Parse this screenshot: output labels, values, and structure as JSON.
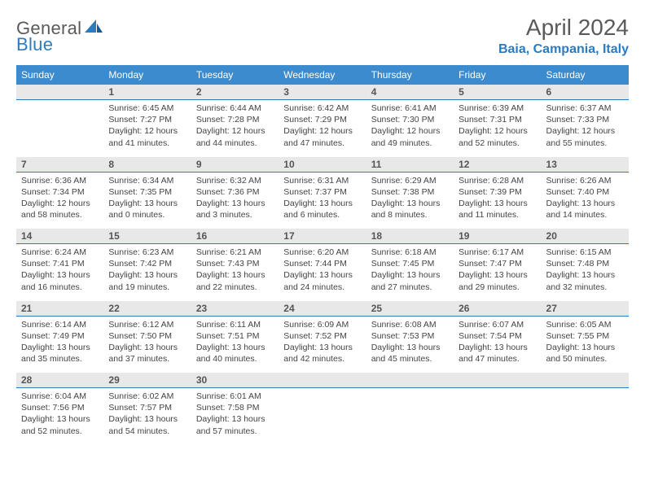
{
  "brand": {
    "part1": "General",
    "part2": "Blue"
  },
  "title": "April 2024",
  "location": "Baia, Campania, Italy",
  "colors": {
    "header_bg": "#3b8bce",
    "header_text": "#ffffff",
    "daynum_bg": "#e8e8e8",
    "daynum_text": "#555555",
    "divider": "#2b7bbf",
    "body_text": "#444444",
    "title_text": "#5a5a5a",
    "location_text": "#2b7bbf",
    "page_bg": "#ffffff"
  },
  "fonts": {
    "title_size_pt": 21,
    "location_size_pt": 12,
    "dayname_size_pt": 9,
    "daynum_size_pt": 9,
    "body_size_pt": 8
  },
  "day_names": [
    "Sunday",
    "Monday",
    "Tuesday",
    "Wednesday",
    "Thursday",
    "Friday",
    "Saturday"
  ],
  "weeks": [
    [
      null,
      {
        "n": "1",
        "sr": "6:45 AM",
        "ss": "7:27 PM",
        "dl": "12 hours and 41 minutes."
      },
      {
        "n": "2",
        "sr": "6:44 AM",
        "ss": "7:28 PM",
        "dl": "12 hours and 44 minutes."
      },
      {
        "n": "3",
        "sr": "6:42 AM",
        "ss": "7:29 PM",
        "dl": "12 hours and 47 minutes."
      },
      {
        "n": "4",
        "sr": "6:41 AM",
        "ss": "7:30 PM",
        "dl": "12 hours and 49 minutes."
      },
      {
        "n": "5",
        "sr": "6:39 AM",
        "ss": "7:31 PM",
        "dl": "12 hours and 52 minutes."
      },
      {
        "n": "6",
        "sr": "6:37 AM",
        "ss": "7:33 PM",
        "dl": "12 hours and 55 minutes."
      }
    ],
    [
      {
        "n": "7",
        "sr": "6:36 AM",
        "ss": "7:34 PM",
        "dl": "12 hours and 58 minutes."
      },
      {
        "n": "8",
        "sr": "6:34 AM",
        "ss": "7:35 PM",
        "dl": "13 hours and 0 minutes."
      },
      {
        "n": "9",
        "sr": "6:32 AM",
        "ss": "7:36 PM",
        "dl": "13 hours and 3 minutes."
      },
      {
        "n": "10",
        "sr": "6:31 AM",
        "ss": "7:37 PM",
        "dl": "13 hours and 6 minutes."
      },
      {
        "n": "11",
        "sr": "6:29 AM",
        "ss": "7:38 PM",
        "dl": "13 hours and 8 minutes."
      },
      {
        "n": "12",
        "sr": "6:28 AM",
        "ss": "7:39 PM",
        "dl": "13 hours and 11 minutes."
      },
      {
        "n": "13",
        "sr": "6:26 AM",
        "ss": "7:40 PM",
        "dl": "13 hours and 14 minutes."
      }
    ],
    [
      {
        "n": "14",
        "sr": "6:24 AM",
        "ss": "7:41 PM",
        "dl": "13 hours and 16 minutes."
      },
      {
        "n": "15",
        "sr": "6:23 AM",
        "ss": "7:42 PM",
        "dl": "13 hours and 19 minutes."
      },
      {
        "n": "16",
        "sr": "6:21 AM",
        "ss": "7:43 PM",
        "dl": "13 hours and 22 minutes."
      },
      {
        "n": "17",
        "sr": "6:20 AM",
        "ss": "7:44 PM",
        "dl": "13 hours and 24 minutes."
      },
      {
        "n": "18",
        "sr": "6:18 AM",
        "ss": "7:45 PM",
        "dl": "13 hours and 27 minutes."
      },
      {
        "n": "19",
        "sr": "6:17 AM",
        "ss": "7:47 PM",
        "dl": "13 hours and 29 minutes."
      },
      {
        "n": "20",
        "sr": "6:15 AM",
        "ss": "7:48 PM",
        "dl": "13 hours and 32 minutes."
      }
    ],
    [
      {
        "n": "21",
        "sr": "6:14 AM",
        "ss": "7:49 PM",
        "dl": "13 hours and 35 minutes."
      },
      {
        "n": "22",
        "sr": "6:12 AM",
        "ss": "7:50 PM",
        "dl": "13 hours and 37 minutes."
      },
      {
        "n": "23",
        "sr": "6:11 AM",
        "ss": "7:51 PM",
        "dl": "13 hours and 40 minutes."
      },
      {
        "n": "24",
        "sr": "6:09 AM",
        "ss": "7:52 PM",
        "dl": "13 hours and 42 minutes."
      },
      {
        "n": "25",
        "sr": "6:08 AM",
        "ss": "7:53 PM",
        "dl": "13 hours and 45 minutes."
      },
      {
        "n": "26",
        "sr": "6:07 AM",
        "ss": "7:54 PM",
        "dl": "13 hours and 47 minutes."
      },
      {
        "n": "27",
        "sr": "6:05 AM",
        "ss": "7:55 PM",
        "dl": "13 hours and 50 minutes."
      }
    ],
    [
      {
        "n": "28",
        "sr": "6:04 AM",
        "ss": "7:56 PM",
        "dl": "13 hours and 52 minutes."
      },
      {
        "n": "29",
        "sr": "6:02 AM",
        "ss": "7:57 PM",
        "dl": "13 hours and 54 minutes."
      },
      {
        "n": "30",
        "sr": "6:01 AM",
        "ss": "7:58 PM",
        "dl": "13 hours and 57 minutes."
      },
      null,
      null,
      null,
      null
    ]
  ],
  "labels": {
    "sunrise_prefix": "Sunrise: ",
    "sunset_prefix": "Sunset: ",
    "daylight_prefix": "Daylight: "
  }
}
